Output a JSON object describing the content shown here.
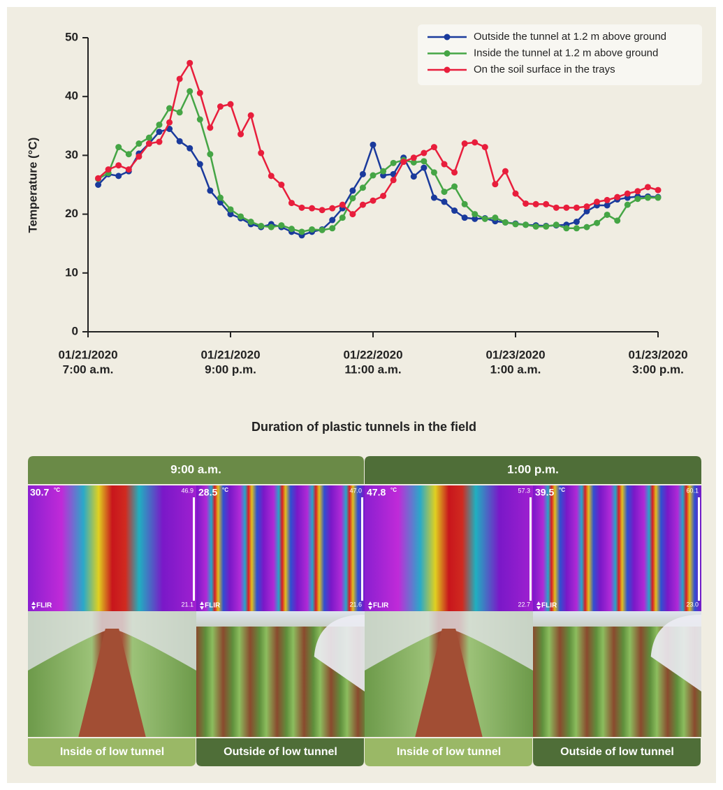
{
  "chart_data": {
    "type": "line",
    "ylabel": "Temperature (°C)",
    "xlabel": "Duration of plastic tunnels in the field",
    "x": [
      1,
      2,
      3,
      4,
      5,
      6,
      7,
      8,
      9,
      10,
      11,
      12,
      13,
      14,
      15,
      16,
      17,
      18,
      19,
      20,
      21,
      22,
      23,
      24,
      25,
      26,
      27,
      28,
      29,
      30,
      31,
      32,
      33,
      34,
      35,
      36,
      37,
      38,
      39,
      40,
      41,
      42,
      43,
      44,
      45,
      46,
      47,
      48,
      49,
      50,
      51,
      52,
      53,
      54,
      55,
      56
    ],
    "xlim": [
      0,
      56
    ],
    "xticks": [
      {
        "value": 0,
        "label": [
          "01/21/2020",
          "7:00 a.m."
        ]
      },
      {
        "value": 14,
        "label": [
          "01/21/2020",
          "9:00 p.m."
        ]
      },
      {
        "value": 28,
        "label": [
          "01/22/2020",
          "11:00 a.m."
        ]
      },
      {
        "value": 42,
        "label": [
          "01/23/2020",
          "1:00 a.m."
        ]
      },
      {
        "value": 56,
        "label": [
          "01/23/2020",
          "3:00 p.m."
        ]
      }
    ],
    "ylim": [
      0,
      50
    ],
    "yticks": [
      0,
      10,
      20,
      30,
      40,
      50
    ],
    "grid": false,
    "legend": "upper right",
    "series": [
      {
        "name": "Outside the tunnel at 1.2 m above ground",
        "color": "#1a3a9c",
        "values": [
          25,
          26.8,
          26.5,
          27.3,
          30.3,
          32,
          34,
          34.5,
          32.4,
          31.2,
          28.5,
          24,
          22,
          20,
          19.3,
          18.3,
          17.8,
          18.3,
          17.8,
          17,
          16.4,
          17,
          17.4,
          19,
          21,
          24,
          26.8,
          31.8,
          26.6,
          26.8,
          29.6,
          26.4,
          27.9,
          22.8,
          22.1,
          20.6,
          19.4,
          19.2,
          19.3,
          18.8,
          18.6,
          18.4,
          18.2,
          18.1,
          18,
          18.1,
          18.2,
          18.7,
          20.5,
          21.5,
          21.5,
          22.5,
          22.8,
          23,
          23,
          22.9
        ]
      },
      {
        "name": "Inside the tunnel at 1.2 m above ground",
        "color": "#45a545",
        "values": [
          26,
          27,
          31.4,
          30.2,
          32,
          33,
          35.2,
          38,
          37.3,
          40.9,
          36.1,
          30.2,
          22.8,
          20.8,
          19.6,
          18.7,
          18,
          17.8,
          18.1,
          17.5,
          17,
          17.4,
          17.3,
          17.6,
          19.4,
          22.7,
          24.5,
          26.6,
          27.3,
          28.7,
          29.2,
          28.8,
          29,
          27.1,
          23.8,
          24.7,
          21.7,
          20,
          19.2,
          19.4,
          18.6,
          18.3,
          18.2,
          17.9,
          17.9,
          18.2,
          17.6,
          17.6,
          17.8,
          18.5,
          19.9,
          18.9,
          21.6,
          22.6,
          22.8,
          22.8
        ]
      },
      {
        "name": "On the soil surface in the trays",
        "color": "#e81e3c",
        "values": [
          26.1,
          27.6,
          28.3,
          27.6,
          29.8,
          32,
          32.3,
          35.6,
          43,
          45.7,
          40.6,
          34.7,
          38.3,
          38.7,
          33.6,
          36.8,
          30.4,
          26.5,
          25,
          21.9,
          21.1,
          21,
          20.7,
          21,
          21.6,
          20,
          21.6,
          22.3,
          23.1,
          25.8,
          28.9,
          29.6,
          30.4,
          31.4,
          28.5,
          27.1,
          32,
          32.2,
          31.4,
          25.1,
          27.3,
          23.5,
          21.8,
          21.7,
          21.7,
          21.1,
          21.1,
          21.1,
          21.3,
          22.1,
          22.4,
          22.9,
          23.5,
          23.9,
          24.6,
          24.1
        ]
      }
    ]
  },
  "figure": {
    "headers": [
      "9:00 a.m.",
      "1:00 p.m."
    ],
    "panels": [
      {
        "caption": "Inside of low tunnel",
        "thermal": {
          "reading": "30.7",
          "unit": "°C",
          "max": "46.9",
          "min": "21.1",
          "brand": "FLIR"
        }
      },
      {
        "caption": "Outside of low tunnel",
        "thermal": {
          "reading": "28.5",
          "unit": "°C",
          "max": "47.0",
          "min": "21.6",
          "brand": "FLIR"
        }
      },
      {
        "caption": "Inside of low tunnel",
        "thermal": {
          "reading": "47.8",
          "unit": "°C",
          "max": "57.3",
          "min": "22.7",
          "brand": "FLIR"
        }
      },
      {
        "caption": "Outside of low tunnel",
        "thermal": {
          "reading": "39.5",
          "unit": "°C",
          "max": "60.1",
          "min": "23.0",
          "brand": "FLIR"
        }
      }
    ]
  }
}
